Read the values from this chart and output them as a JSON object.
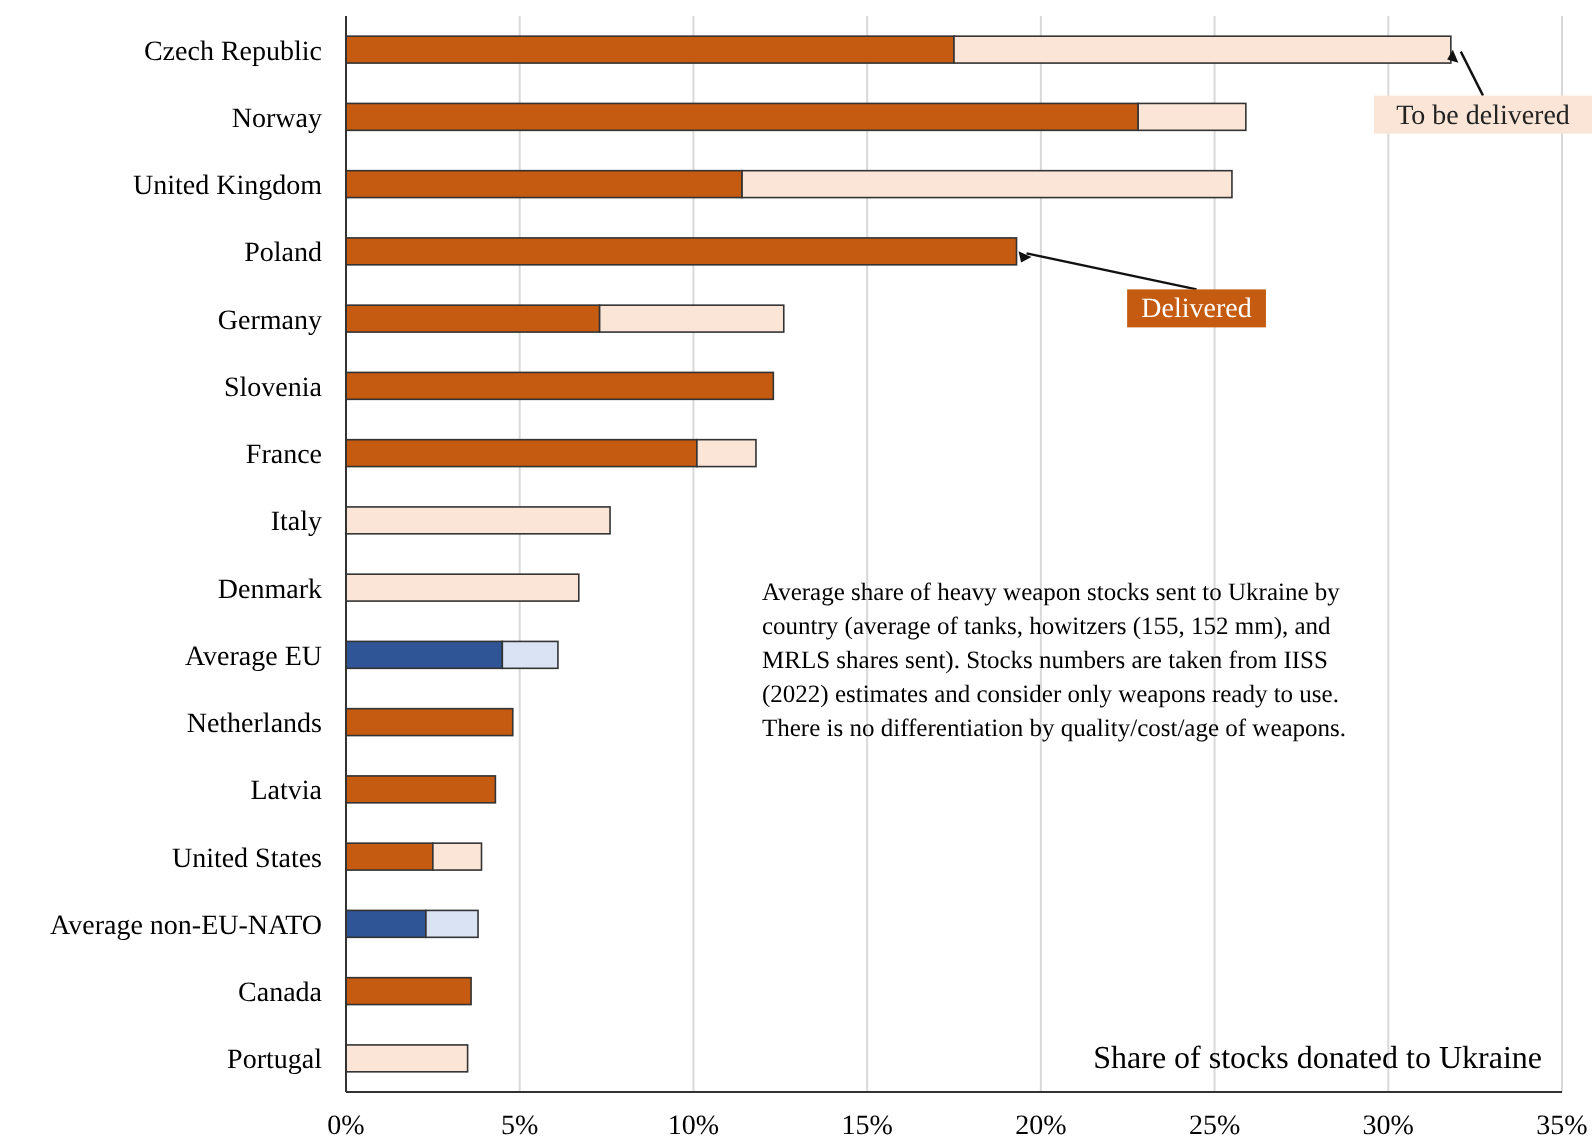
{
  "chart_data": {
    "type": "bar",
    "orientation": "horizontal",
    "stacked": true,
    "categories": [
      "Czech Republic",
      "Norway",
      "United Kingdom",
      "Poland",
      "Germany",
      "Slovenia",
      "France",
      "Italy",
      "Denmark",
      "Average EU",
      "Netherlands",
      "Latvia",
      "United States",
      "Average non-EU-NATO",
      "Canada",
      "Portugal"
    ],
    "series": [
      {
        "name": "Delivered",
        "color": "#c55a11",
        "colors": [
          "#c55a11",
          "#c55a11",
          "#c55a11",
          "#c55a11",
          "#c55a11",
          "#c55a11",
          "#c55a11",
          "#c55a11",
          "#c55a11",
          "#2f5597",
          "#c55a11",
          "#c55a11",
          "#c55a11",
          "#2f5597",
          "#c55a11",
          "#c55a11"
        ],
        "values": [
          17.5,
          22.8,
          11.4,
          19.3,
          7.3,
          12.3,
          10.1,
          0,
          0,
          4.5,
          4.8,
          4.3,
          2.5,
          2.3,
          3.6,
          0
        ]
      },
      {
        "name": "To be delivered",
        "color": "#fbe5d6",
        "colors": [
          "#fbe5d6",
          "#fbe5d6",
          "#fbe5d6",
          "#fbe5d6",
          "#fbe5d6",
          "#fbe5d6",
          "#fbe5d6",
          "#fbe5d6",
          "#fbe5d6",
          "#dae3f3",
          "#fbe5d6",
          "#fbe5d6",
          "#fbe5d6",
          "#dae3f3",
          "#fbe5d6",
          "#fbe5d6"
        ],
        "values": [
          14.3,
          3.1,
          14.1,
          0,
          5.3,
          0,
          1.7,
          7.6,
          6.7,
          1.6,
          0,
          0,
          1.4,
          1.5,
          0,
          3.5
        ]
      }
    ],
    "xlim": [
      0,
      35
    ],
    "xticks": [
      {
        "value": 0,
        "label": "0%"
      },
      {
        "value": 5,
        "label": "5%"
      },
      {
        "value": 10,
        "label": "10%"
      },
      {
        "value": 15,
        "label": "15%"
      },
      {
        "value": 20,
        "label": "20%"
      },
      {
        "value": 25,
        "label": "25%"
      },
      {
        "value": 30,
        "label": "30%"
      },
      {
        "value": 35,
        "label": "35%"
      }
    ],
    "xlabel": "Share of stocks donated to Ukraine",
    "annotations": [
      "Average share of heavy weapon stocks sent to Ukraine by country (average of tanks, howitzers (155, 152 mm), and MRLS shares sent). Stocks numbers are taken from IISS (2022) estimates and consider only weapons ready to use. There is no differentiation by quality/cost/age of weapons."
    ],
    "grid": "x"
  }
}
